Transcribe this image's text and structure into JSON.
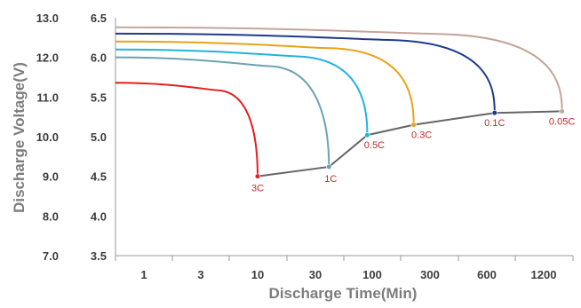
{
  "chart_data": {
    "type": "line",
    "title": "",
    "xlabel": "Discharge Time(Min)",
    "ylabel": "Discharge  Voltage(V)",
    "x_ticks": [
      "1",
      "3",
      "10",
      "30",
      "100",
      "300",
      "600",
      "1200"
    ],
    "x_scale": "log",
    "y_ticks_outer": [
      "13.0",
      "12.0",
      "11.0",
      "10.0",
      "9.0",
      "8.0",
      "7.0"
    ],
    "y_ticks_inner": [
      "6.5",
      "6.0",
      "5.5",
      "5.0",
      "4.5",
      "4.0",
      "3.5"
    ],
    "ylim_outer": [
      7.0,
      13.0
    ],
    "ylim_inner": [
      3.5,
      6.5
    ],
    "grid": false,
    "series": [
      {
        "name": "3C",
        "color": "#e02020",
        "end_time": 10,
        "initial_voltage": 5.68,
        "end_voltage": 4.5
      },
      {
        "name": "1C",
        "color": "#6aa3b4",
        "end_time": 40,
        "initial_voltage": 6.0,
        "end_voltage": 4.62
      },
      {
        "name": "0.5C",
        "color": "#22b2de",
        "end_time": 90,
        "initial_voltage": 6.1,
        "end_voltage": 5.02
      },
      {
        "name": "0.3C",
        "color": "#e8a317",
        "end_time": 220,
        "initial_voltage": 6.2,
        "end_voltage": 5.15
      },
      {
        "name": "0.1C",
        "color": "#1f3a8c",
        "end_time": 660,
        "initial_voltage": 6.3,
        "end_voltage": 5.3
      },
      {
        "name": "0.05C",
        "color": "#c5a59a",
        "end_time": 1500,
        "initial_voltage": 6.38,
        "end_voltage": 5.32
      }
    ],
    "cutoff_line_color": "#666666"
  }
}
